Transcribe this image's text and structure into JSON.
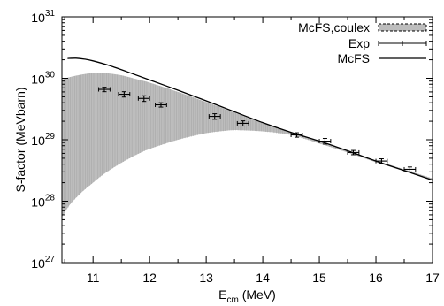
{
  "chart_data": {
    "type": "scatter",
    "title": "",
    "xlabel": "E_cm (MeV)",
    "xlabel_main": "E",
    "xlabel_sub": "cm",
    "xlabel_unit": " (MeV)",
    "ylabel": "S-factor (MeVbarn)",
    "xlim": [
      10.45,
      17.0
    ],
    "ylim": [
      1e+27,
      1e+31
    ],
    "yscale": "log",
    "grid": false,
    "legend_position": "top-right",
    "x_ticks": [
      11,
      12,
      13,
      14,
      15,
      16,
      17
    ],
    "x_tick_labels": [
      "11",
      "12",
      "13",
      "14",
      "15",
      "16",
      "17"
    ],
    "y_ticks": [
      1e+27,
      1e+28,
      1e+29,
      1e+30,
      1e+31
    ],
    "y_tick_base": "10",
    "y_tick_exponents": [
      "27",
      "28",
      "29",
      "30",
      "31"
    ],
    "legend": [
      {
        "label": "McFS,coulex",
        "kind": "band"
      },
      {
        "label": "Exp",
        "kind": "errorbar"
      },
      {
        "label": "McFS",
        "kind": "line"
      }
    ],
    "series": [
      {
        "name": "McFS,coulex",
        "kind": "band",
        "color": "#bdbdbd",
        "x": [
          10.45,
          10.6,
          10.8,
          11.0,
          11.2,
          11.5,
          11.8,
          12.0,
          12.5,
          13.0,
          13.4,
          13.6,
          14.0,
          14.5,
          15.0,
          15.5,
          16.0,
          16.5,
          17.0
        ],
        "upper": [
          9.5e+29,
          1.05e+30,
          1.15e+30,
          1.22e+30,
          1.22e+30,
          1.12e+30,
          9.5e+29,
          8.5e+29,
          6e+29,
          4.1e+29,
          3e+29,
          2.55e+29,
          1.88e+29,
          1.32e+29,
          9.5e+28,
          6.6e+28,
          4.6e+28,
          3.3e+28,
          2.35e+28
        ],
        "lower": [
          5.5e+27,
          9e+27,
          1.4e+28,
          2e+28,
          2.8e+28,
          4.2e+28,
          5.9e+28,
          7.1e+28,
          1e+29,
          1.28e+29,
          1.42e+29,
          1.43e+29,
          1.37e+29,
          1.2e+29,
          8.7e+28,
          6.2e+28,
          4.3e+28,
          3.1e+28,
          2.25e+28
        ]
      },
      {
        "name": "Exp",
        "kind": "errorbar",
        "color": "#000000",
        "x": [
          11.2,
          11.55,
          11.9,
          12.2,
          13.15,
          13.65,
          14.6,
          15.1,
          15.6,
          16.1,
          16.6
        ],
        "y": [
          6.6e+29,
          5.5e+29,
          4.7e+29,
          3.7e+29,
          2.4e+29,
          1.85e+29,
          1.2e+29,
          9.5e+28,
          6.2e+28,
          4.5e+28,
          3.3e+28
        ],
        "xerr": [
          0.1,
          0.1,
          0.1,
          0.1,
          0.1,
          0.1,
          0.1,
          0.1,
          0.1,
          0.1,
          0.1
        ],
        "yerr_lo": [
          5.5e+28,
          5.5e+28,
          5e+28,
          3e+28,
          2.5e+28,
          1.8e+28,
          1e+28,
          1e+28,
          5e+27,
          4e+27,
          3e+27
        ],
        "yerr_hi": [
          5.5e+28,
          5.5e+28,
          5e+28,
          3e+28,
          2.5e+28,
          1.8e+28,
          1e+28,
          1e+28,
          5e+27,
          4e+27,
          3e+27
        ]
      },
      {
        "name": "McFS",
        "kind": "line",
        "color": "#000000",
        "x": [
          10.55,
          10.7,
          10.85,
          11.0,
          11.3,
          11.6,
          12.0,
          12.5,
          13.0,
          13.5,
          14.0,
          14.5,
          15.0,
          15.5,
          16.0,
          16.5,
          17.0
        ],
        "y": [
          2.1e+30,
          2.12e+30,
          2.05e+30,
          1.92e+30,
          1.6e+30,
          1.28e+30,
          9.4e+29,
          6.4e+29,
          4.3e+29,
          2.85e+29,
          1.9e+29,
          1.32e+29,
          9.5e+28,
          6.6e+28,
          4.5e+28,
          3.15e+28,
          2.2e+28
        ]
      }
    ]
  }
}
